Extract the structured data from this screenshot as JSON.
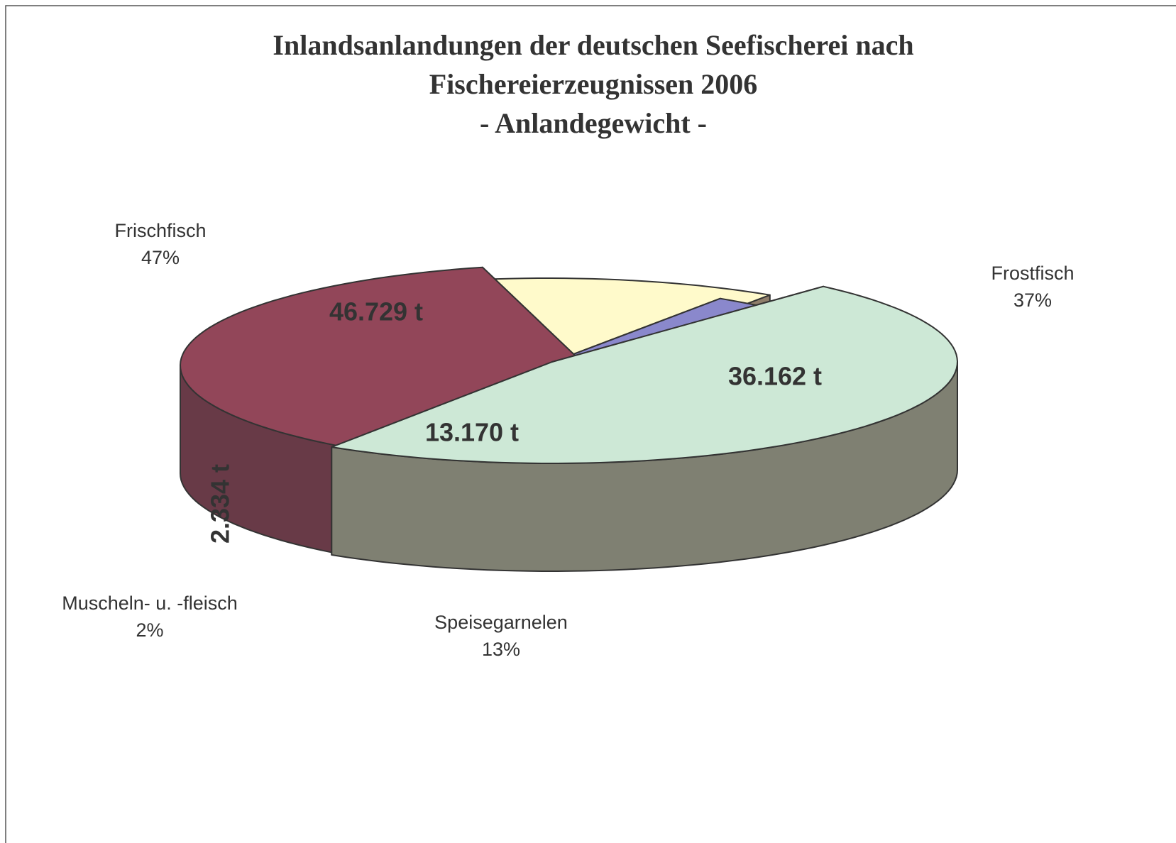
{
  "chart_data": {
    "type": "pie3d",
    "title": [
      "Inlandsanlandungen der deutschen Seefischerei nach",
      "Fischereierzeugnissen 2006"
    ],
    "subtitle": "- Anlandegewicht -",
    "categories": [
      "Frischfisch",
      "Frostfisch",
      "Speisegarnelen",
      "Muscheln- u. -fleisch"
    ],
    "values": [
      46729,
      36162,
      13170,
      2334
    ],
    "value_labels": [
      "46.729 t",
      "36.162 t",
      "13.170 t",
      "2.334 t"
    ],
    "percentages": [
      47,
      37,
      13,
      2
    ],
    "percentage_labels": [
      "47%",
      "37%",
      "13%",
      "2%"
    ],
    "colors": [
      "#cde8d6",
      "#924659",
      "#fffacb",
      "#8a88cc"
    ],
    "side_colors": [
      "#7f8072",
      "#683a47",
      "#8f7e6b",
      "#5f556f"
    ]
  }
}
